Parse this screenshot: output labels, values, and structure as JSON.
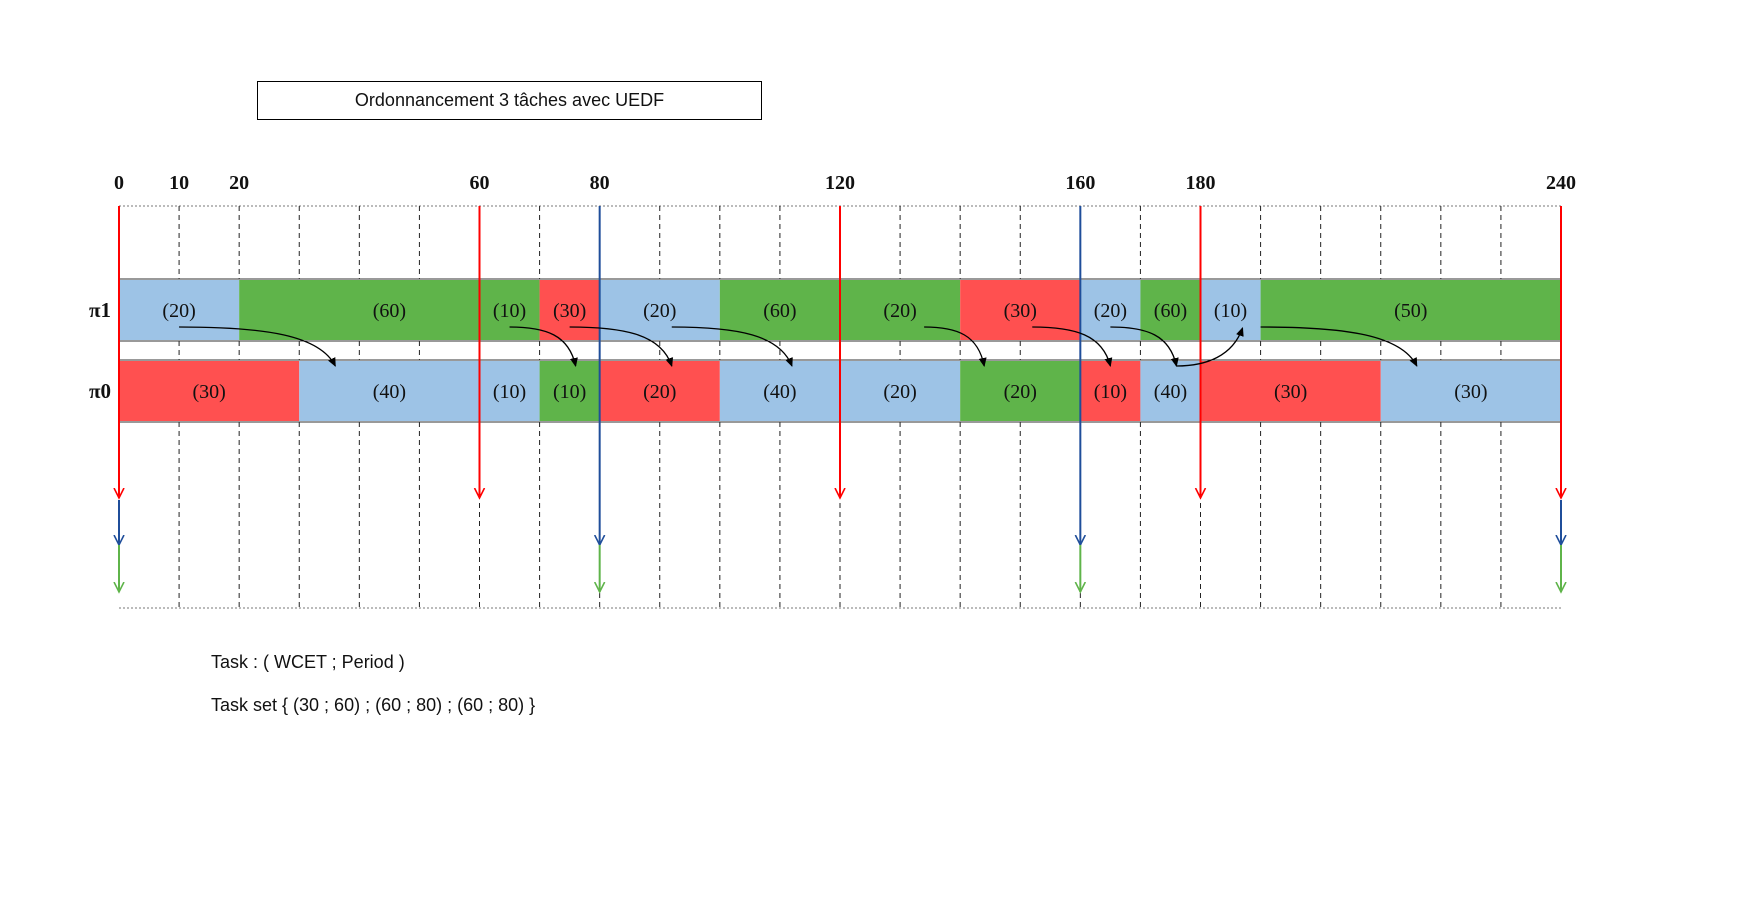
{
  "title": "Ordonnancement 3 tâches avec UEDF",
  "legend": {
    "line1": "Task : ( WCET ; Period )",
    "line2": "Task set { (30 ; 60) ; (60 ; 80) ; (60 ; 80) }"
  },
  "colors": {
    "red": "#ff5050",
    "blue": "#9dc3e6",
    "green": "#5fb44a",
    "red_arrow": "#ff0000",
    "blue_arrow": "#1f4e9a",
    "green_arrow": "#5fb44a"
  },
  "timeline": {
    "ticks": [
      {
        "t": 0,
        "label": "0"
      },
      {
        "t": 10,
        "label": "10"
      },
      {
        "t": 20,
        "label": "20"
      },
      {
        "t": 60,
        "label": "60"
      },
      {
        "t": 80,
        "label": "80"
      },
      {
        "t": 120,
        "label": "120"
      },
      {
        "t": 160,
        "label": "160"
      },
      {
        "t": 180,
        "label": "180"
      },
      {
        "t": 240,
        "label": "240"
      }
    ],
    "max": 240,
    "grid_step": 10
  },
  "processors": [
    {
      "name": "π1",
      "segments": [
        {
          "start": 0,
          "end": 20,
          "color": "blue",
          "label": "(20)"
        },
        {
          "start": 20,
          "end": 70,
          "color": "green",
          "label": "(60)"
        },
        {
          "start": 60,
          "end": 70,
          "color": "green",
          "label": "(10)"
        },
        {
          "start": 70,
          "end": 80,
          "color": "red",
          "label": "(30)"
        },
        {
          "start": 80,
          "end": 100,
          "color": "blue",
          "label": "(20)"
        },
        {
          "start": 100,
          "end": 120,
          "color": "green",
          "label": "(60)"
        },
        {
          "start": 120,
          "end": 140,
          "color": "green",
          "label": "(20)"
        },
        {
          "start": 140,
          "end": 160,
          "color": "red",
          "label": "(30)"
        },
        {
          "start": 160,
          "end": 170,
          "color": "blue",
          "label": "(20)"
        },
        {
          "start": 170,
          "end": 180,
          "color": "green",
          "label": "(60)"
        },
        {
          "start": 180,
          "end": 190,
          "color": "blue",
          "label": "(10)"
        },
        {
          "start": 190,
          "end": 240,
          "color": "green",
          "label": "(50)"
        }
      ]
    },
    {
      "name": "π0",
      "segments": [
        {
          "start": 0,
          "end": 30,
          "color": "red",
          "label": "(30)"
        },
        {
          "start": 30,
          "end": 60,
          "color": "blue",
          "label": "(40)"
        },
        {
          "start": 60,
          "end": 70,
          "color": "blue",
          "label": "(10)"
        },
        {
          "start": 70,
          "end": 80,
          "color": "green",
          "label": "(10)"
        },
        {
          "start": 80,
          "end": 100,
          "color": "red",
          "label": "(20)"
        },
        {
          "start": 100,
          "end": 120,
          "color": "blue",
          "label": "(40)"
        },
        {
          "start": 120,
          "end": 140,
          "color": "blue",
          "label": "(20)"
        },
        {
          "start": 140,
          "end": 160,
          "color": "green",
          "label": "(20)"
        },
        {
          "start": 160,
          "end": 170,
          "color": "red",
          "label": "(10)"
        },
        {
          "start": 170,
          "end": 180,
          "color": "blue",
          "label": "(40)"
        },
        {
          "start": 180,
          "end": 210,
          "color": "red",
          "label": "(30)"
        },
        {
          "start": 210,
          "end": 240,
          "color": "blue",
          "label": "(30)"
        }
      ]
    }
  ],
  "deadlines": {
    "red": [
      0,
      60,
      120,
      180,
      240
    ],
    "blue": [
      0,
      80,
      160,
      240
    ],
    "green": [
      0,
      80,
      160,
      240
    ]
  },
  "migrations": [
    {
      "from_t": 10,
      "to_t": 36
    },
    {
      "from_t": 65,
      "to_t": 76
    },
    {
      "from_t": 75,
      "to_t": 92
    },
    {
      "from_t": 92,
      "to_t": 112
    },
    {
      "from_t": 134,
      "to_t": 144
    },
    {
      "from_t": 152,
      "to_t": 165
    },
    {
      "from_t": 165,
      "to_t": 176
    },
    {
      "from_t": 176,
      "to_t": 187
    },
    {
      "from_t": 190,
      "to_t": 216
    }
  ]
}
